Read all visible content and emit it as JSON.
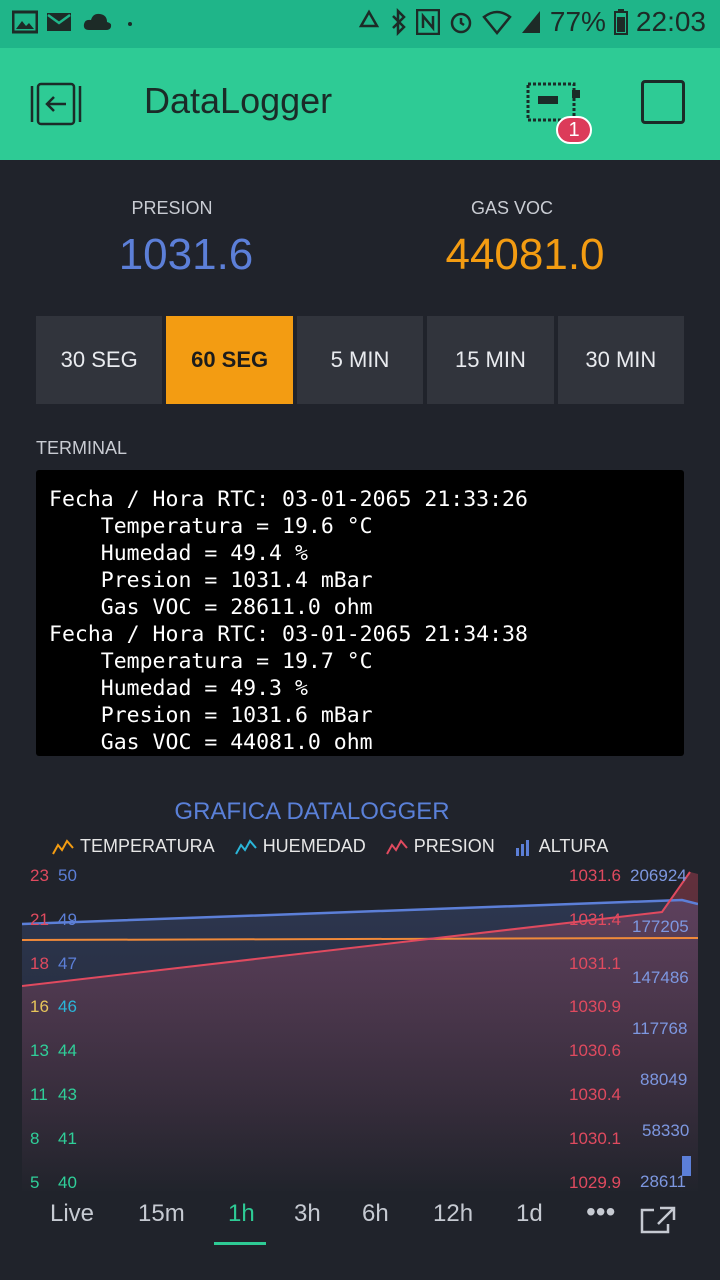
{
  "status": {
    "battery": "77%",
    "time": "22:03"
  },
  "header": {
    "title": "DataLogger",
    "device_badge": "1"
  },
  "values": {
    "left": {
      "label": "PRESION",
      "value": "1031.6",
      "color": "#5c7fd8"
    },
    "right": {
      "label": "GAS VOC",
      "value": "44081.0",
      "color": "#f39c12"
    }
  },
  "segments": [
    "30 SEG",
    "60 SEG",
    "5 MIN",
    "15 MIN",
    "30 MIN"
  ],
  "segments_active": "60 SEG",
  "terminal": {
    "label": "TERMINAL",
    "lines": [
      "Fecha / Hora RTC: 03-01-2065 21:33:26",
      "    Temperatura = 19.6 °C",
      "    Humedad = 49.4 %",
      "    Presion = 1031.4 mBar",
      "    Gas VOC = 28611.0 ohm",
      "Fecha / Hora RTC: 03-01-2065 21:34:38",
      "    Temperatura = 19.7 °C",
      "    Humedad = 49.3 %",
      "    Presion = 1031.6 mBar",
      "    Gas VOC = 44081.0 ohm"
    ]
  },
  "chart": {
    "title": "GRAFICA DATALOGGER",
    "legend": [
      {
        "name": "TEMPERATURA",
        "color": "#f39c12"
      },
      {
        "name": "HUEMEDAD",
        "color": "#2ab5d8"
      },
      {
        "name": "PRESION",
        "color": "#e04a5f"
      },
      {
        "name": "ALTURA",
        "color": "#5c7fd8"
      }
    ]
  },
  "chart_data": {
    "type": "line",
    "title": "GRAFICA DATALOGGER",
    "axes": {
      "temperatura": [
        "23",
        "21",
        "18",
        "16",
        "13",
        "11",
        "8",
        "5"
      ],
      "humedad": [
        "50",
        "49",
        "47",
        "46",
        "44",
        "43",
        "41",
        "40"
      ],
      "presion": [
        "1031.6",
        "1031.4",
        "1031.1",
        "1030.9",
        "1030.6",
        "1030.4",
        "1030.1",
        "1029.9"
      ],
      "altura": [
        "206924",
        "177205",
        "147486",
        "117768",
        "88049",
        "58330",
        "28611"
      ]
    },
    "series": [
      {
        "name": "TEMPERATURA",
        "values": [
          19.6,
          19.7
        ]
      },
      {
        "name": "HUEMEDAD",
        "values": [
          49.4,
          49.3
        ]
      },
      {
        "name": "PRESION",
        "values": [
          1031.4,
          1031.6
        ]
      },
      {
        "name": "ALTURA",
        "values": [
          28611,
          44081
        ]
      }
    ]
  },
  "ranges": [
    "Live",
    "15m",
    "1h",
    "3h",
    "6h",
    "12h",
    "1d"
  ],
  "ranges_active": "1h"
}
